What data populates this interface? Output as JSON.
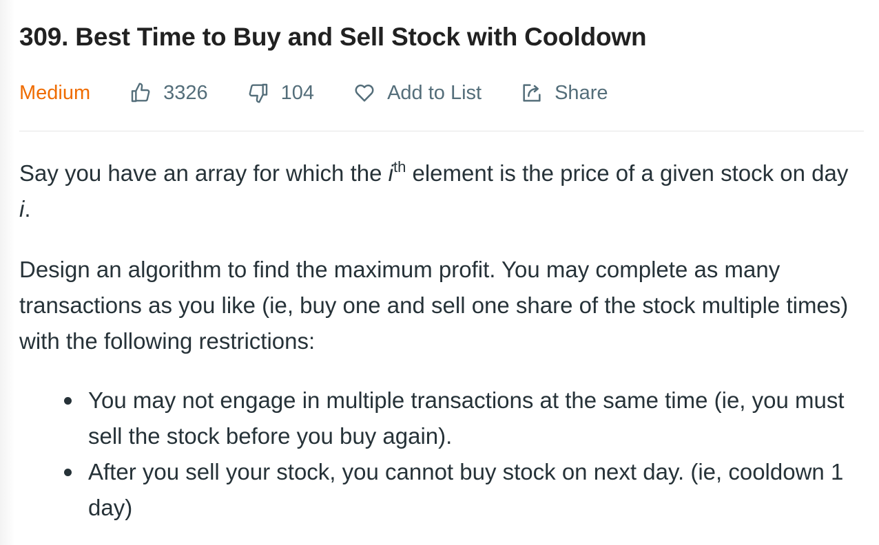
{
  "problem": {
    "title": "309. Best Time to Buy and Sell Stock with Cooldown",
    "difficulty": "Medium",
    "likes": "3326",
    "dislikes": "104",
    "add_to_list_label": "Add to List",
    "share_label": "Share"
  },
  "description": {
    "p1_before_sup": "Say you have an array for which the ",
    "p1_i": "i",
    "p1_sup": "th",
    "p1_after_sup": " element is the price of a given stock on day ",
    "p1_day_i": "i",
    "p1_end": ".",
    "p2": "Design an algorithm to find the maximum profit. You may complete as many transactions as you like (ie, buy one and sell one share of the stock multiple times) with the following restrictions:",
    "restrictions": [
      "You may not engage in multiple transactions at the same time (ie, you must sell the stock before you buy again).",
      "After you sell your stock, you cannot buy stock on next day. (ie, cooldown 1 day)"
    ]
  },
  "colors": {
    "difficulty_medium": "#ef6c00",
    "meta_text": "#546e7a",
    "body_text": "#263238"
  },
  "icons": [
    "thumbs-up-icon",
    "thumbs-down-icon",
    "heart-icon",
    "share-icon"
  ]
}
